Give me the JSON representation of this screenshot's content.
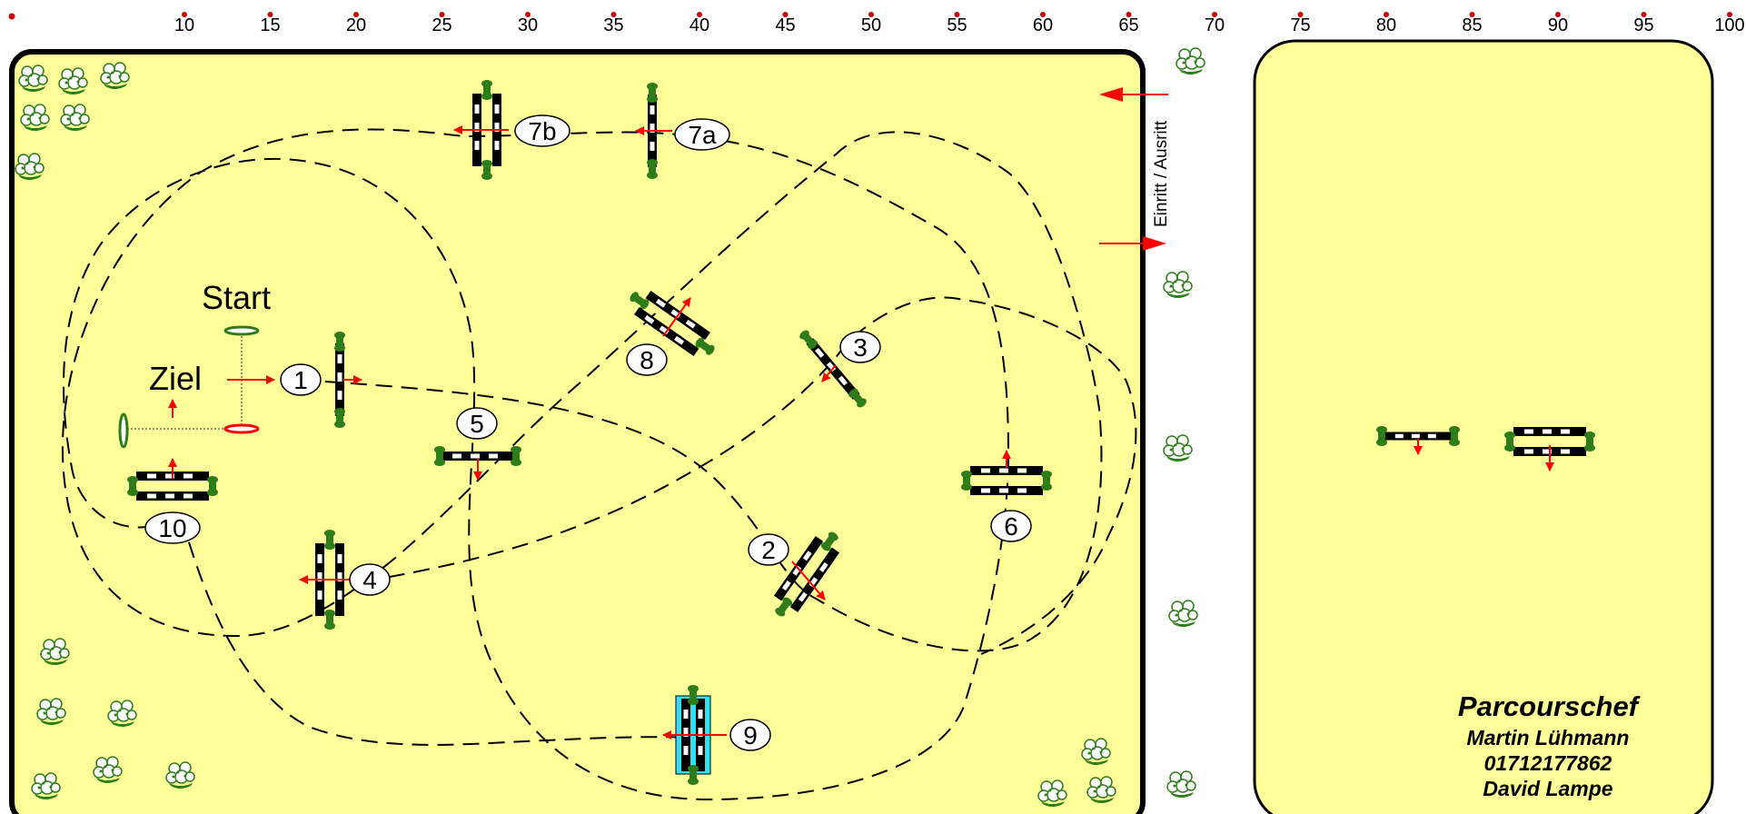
{
  "ruler": {
    "ticks": [
      "10",
      "15",
      "20",
      "25",
      "30",
      "35",
      "40",
      "45",
      "50",
      "55",
      "60",
      "65",
      "70",
      "75",
      "80",
      "85",
      "90",
      "95",
      "100"
    ]
  },
  "arena": {
    "fill_color": "#ffff99",
    "border_color": "#000000",
    "start_label": "Start",
    "finish_label": "Ziel",
    "entrance_label": "Einritt / Ausritt"
  },
  "obstacles": [
    {
      "id": "1",
      "label": "1"
    },
    {
      "id": "2",
      "label": "2"
    },
    {
      "id": "3",
      "label": "3"
    },
    {
      "id": "4",
      "label": "4"
    },
    {
      "id": "5",
      "label": "5"
    },
    {
      "id": "6",
      "label": "6"
    },
    {
      "id": "7a",
      "label": "7a"
    },
    {
      "id": "7b",
      "label": "7b"
    },
    {
      "id": "8",
      "label": "8"
    },
    {
      "id": "9",
      "label": "9"
    },
    {
      "id": "10",
      "label": "10"
    }
  ],
  "warmup": {
    "fill_color": "#ffff99",
    "credits_title": "Parcourschef",
    "credits_lines": [
      "Martin Lühmann",
      "01712177862",
      "David Lampe"
    ]
  },
  "colors": {
    "pole_black": "#000000",
    "pole_white": "#ffffff",
    "bush_green": "#2e7d1a",
    "water_cyan": "#33e0f0",
    "direction_red": "#ff0000"
  },
  "icons": [
    "shrub-icon",
    "direction-arrow-icon",
    "entrance-arrow-icon"
  ]
}
